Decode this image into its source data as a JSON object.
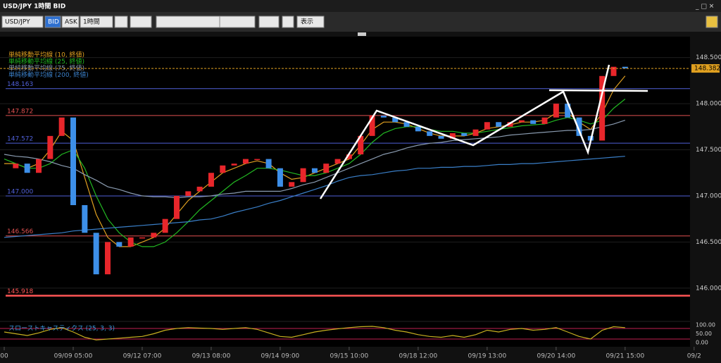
{
  "window": {
    "title": "USD/JPY 1時間 BID"
  },
  "toolbar": {
    "symbol": "USD/JPY",
    "bid": "BID",
    "ask": "ASK",
    "timeframe": "1時間",
    "view": "表示"
  },
  "chart_data": [
    {
      "type": "candlestick",
      "name": "USD/JPY",
      "color_up": "#e8262b",
      "color_down": "#3d8fe8",
      "categories": [
        "00",
        null,
        null,
        null,
        null,
        null,
        "09/09 05:00",
        null,
        null,
        null,
        null,
        null,
        "09/12 07:00",
        null,
        null,
        null,
        null,
        null,
        "09/13 08:00",
        null,
        null,
        null,
        null,
        null,
        "09/14 09:00",
        null,
        null,
        null,
        null,
        null,
        "09/15 10:00",
        null,
        null,
        null,
        null,
        null,
        "09/18 12:00",
        null,
        null,
        null,
        null,
        null,
        "09/19 13:00",
        null,
        null,
        null,
        null,
        null,
        "09/20 14:00",
        null,
        null,
        null,
        null,
        null,
        "09/21 15:00",
        null,
        null,
        null,
        null,
        null,
        "09/2"
      ],
      "values": [
        147.3,
        147.35,
        147.25,
        147.4,
        147.65,
        147.85,
        146.9,
        146.6,
        146.15,
        146.5,
        146.45,
        146.55,
        146.55,
        146.6,
        146.75,
        147.0,
        147.05,
        147.1,
        147.25,
        147.33,
        147.35,
        147.4,
        147.4,
        147.3,
        147.1,
        147.15,
        147.3,
        147.25,
        147.35,
        147.4,
        147.45,
        147.65,
        147.87,
        147.85,
        147.8,
        147.75,
        147.7,
        147.65,
        147.62,
        147.68,
        147.65,
        147.72,
        147.8,
        147.75,
        147.8,
        147.82,
        147.78,
        147.85,
        148.0,
        147.85,
        147.65,
        147.6,
        148.3,
        148.4,
        148.382,
        null,
        null,
        null,
        null,
        null,
        null
      ],
      "series": [
        {
          "name": "単純移動平均線 (10, 終値)",
          "color": "#e0a020",
          "values": [
            147.35,
            147.35,
            147.3,
            147.35,
            147.5,
            147.7,
            147.6,
            147.2,
            146.8,
            146.55,
            146.45,
            146.45,
            146.5,
            146.55,
            146.65,
            146.8,
            146.95,
            147.05,
            147.15,
            147.25,
            147.3,
            147.35,
            147.38,
            147.35,
            147.25,
            147.18,
            147.2,
            147.25,
            147.3,
            147.35,
            147.4,
            147.55,
            147.72,
            147.8,
            147.8,
            147.78,
            147.73,
            147.68,
            147.65,
            147.65,
            147.65,
            147.68,
            147.73,
            147.75,
            147.77,
            147.8,
            147.8,
            147.82,
            147.9,
            147.9,
            147.8,
            147.72,
            147.9,
            148.15,
            148.3,
            null,
            null,
            null,
            null,
            null,
            null
          ]
        },
        {
          "name": "単純移動平均線 (25, 終値)",
          "color": "#22b822",
          "values": [
            147.4,
            147.35,
            147.3,
            147.3,
            147.35,
            147.45,
            147.5,
            147.3,
            147.0,
            146.75,
            146.6,
            146.5,
            146.45,
            146.45,
            146.5,
            146.6,
            146.72,
            146.85,
            146.95,
            147.05,
            147.15,
            147.22,
            147.3,
            147.3,
            147.28,
            147.25,
            147.22,
            147.22,
            147.25,
            147.3,
            147.35,
            147.45,
            147.58,
            147.68,
            147.73,
            147.75,
            147.75,
            147.72,
            147.7,
            147.7,
            147.68,
            147.68,
            147.7,
            147.72,
            147.74,
            147.76,
            147.77,
            147.78,
            147.82,
            147.85,
            147.82,
            147.78,
            147.82,
            147.95,
            148.05,
            null,
            null,
            null,
            null,
            null,
            null
          ]
        },
        {
          "name": "単純移動平均線 (75, 終値)",
          "color": "#8a9bb0",
          "values": [
            147.45,
            147.43,
            147.42,
            147.4,
            147.37,
            147.33,
            147.3,
            147.23,
            147.17,
            147.1,
            147.07,
            147.03,
            147.0,
            146.99,
            146.99,
            146.98,
            146.99,
            146.99,
            147.0,
            147.02,
            147.03,
            147.05,
            147.05,
            147.05,
            147.05,
            147.08,
            147.12,
            147.15,
            147.2,
            147.25,
            147.3,
            147.35,
            147.4,
            147.45,
            147.48,
            147.52,
            147.55,
            147.57,
            147.58,
            147.6,
            147.61,
            147.62,
            147.63,
            147.64,
            147.66,
            147.67,
            147.68,
            147.69,
            147.7,
            147.71,
            147.71,
            147.72,
            147.75,
            147.78,
            147.82,
            null,
            null,
            null,
            null,
            null,
            null
          ]
        },
        {
          "name": "単純移動平均線 (200, 終値)",
          "color": "#3a7fc8",
          "values": [
            146.55,
            146.56,
            146.57,
            146.58,
            146.59,
            146.6,
            146.62,
            146.63,
            146.64,
            146.65,
            146.66,
            146.67,
            146.68,
            146.69,
            146.7,
            146.71,
            146.72,
            146.74,
            146.75,
            146.78,
            146.82,
            146.85,
            146.88,
            146.92,
            146.95,
            146.99,
            147.03,
            147.07,
            147.11,
            147.16,
            147.2,
            147.22,
            147.23,
            147.25,
            147.27,
            147.28,
            147.3,
            147.3,
            147.31,
            147.31,
            147.32,
            147.32,
            147.33,
            147.34,
            147.34,
            147.35,
            147.35,
            147.36,
            147.37,
            147.38,
            147.39,
            147.4,
            147.41,
            147.42,
            147.43,
            null,
            null,
            null,
            null,
            null,
            null
          ]
        }
      ],
      "levels": [
        {
          "value": 148.163,
          "label": "148.163",
          "color": "#5060d8"
        },
        {
          "value": 147.872,
          "label": "147.872",
          "color": "#e05050"
        },
        {
          "value": 147.572,
          "label": "147.572",
          "color": "#5060d8"
        },
        {
          "value": 147.0,
          "label": "147.000",
          "color": "#5060d8"
        },
        {
          "value": 146.566,
          "label": "146.566",
          "color": "#e05050"
        },
        {
          "value": 145.918,
          "label": "145.918",
          "color": "#ff5555"
        }
      ],
      "last": {
        "value": 148.382,
        "label": "148.382",
        "color": "#e0a020"
      },
      "ylim": [
        145.67,
        148.65
      ],
      "yticks": [
        {
          "value": 146.0,
          "label": "146.000"
        },
        {
          "value": 146.5,
          "label": "146.500"
        },
        {
          "value": 147.0,
          "label": "147.000"
        },
        {
          "value": 147.5,
          "label": "147.500"
        },
        {
          "value": 148.0,
          "label": "148.000"
        },
        {
          "value": 148.5,
          "label": "148.500"
        }
      ],
      "grid": true
    },
    {
      "type": "line",
      "title": "スローストキャスティクス (25, 3, 3)",
      "color": "#c8b020",
      "values": [
        60,
        50,
        40,
        55,
        75,
        85,
        60,
        30,
        15,
        20,
        25,
        30,
        35,
        50,
        70,
        80,
        85,
        82,
        80,
        75,
        80,
        85,
        75,
        55,
        35,
        30,
        45,
        60,
        70,
        78,
        85,
        90,
        92,
        85,
        70,
        60,
        45,
        35,
        30,
        40,
        30,
        45,
        70,
        60,
        75,
        80,
        70,
        75,
        85,
        60,
        35,
        20,
        70,
        90,
        85,
        null,
        null,
        null,
        null,
        null,
        null
      ],
      "hlines": [
        80,
        20
      ],
      "hline_color": "#c02050",
      "ylim": [
        0,
        100
      ],
      "yticks": [
        {
          "value": 0,
          "label": "0.00"
        },
        {
          "value": 50,
          "label": "50.00"
        },
        {
          "value": 100,
          "label": "100.00"
        }
      ]
    }
  ]
}
